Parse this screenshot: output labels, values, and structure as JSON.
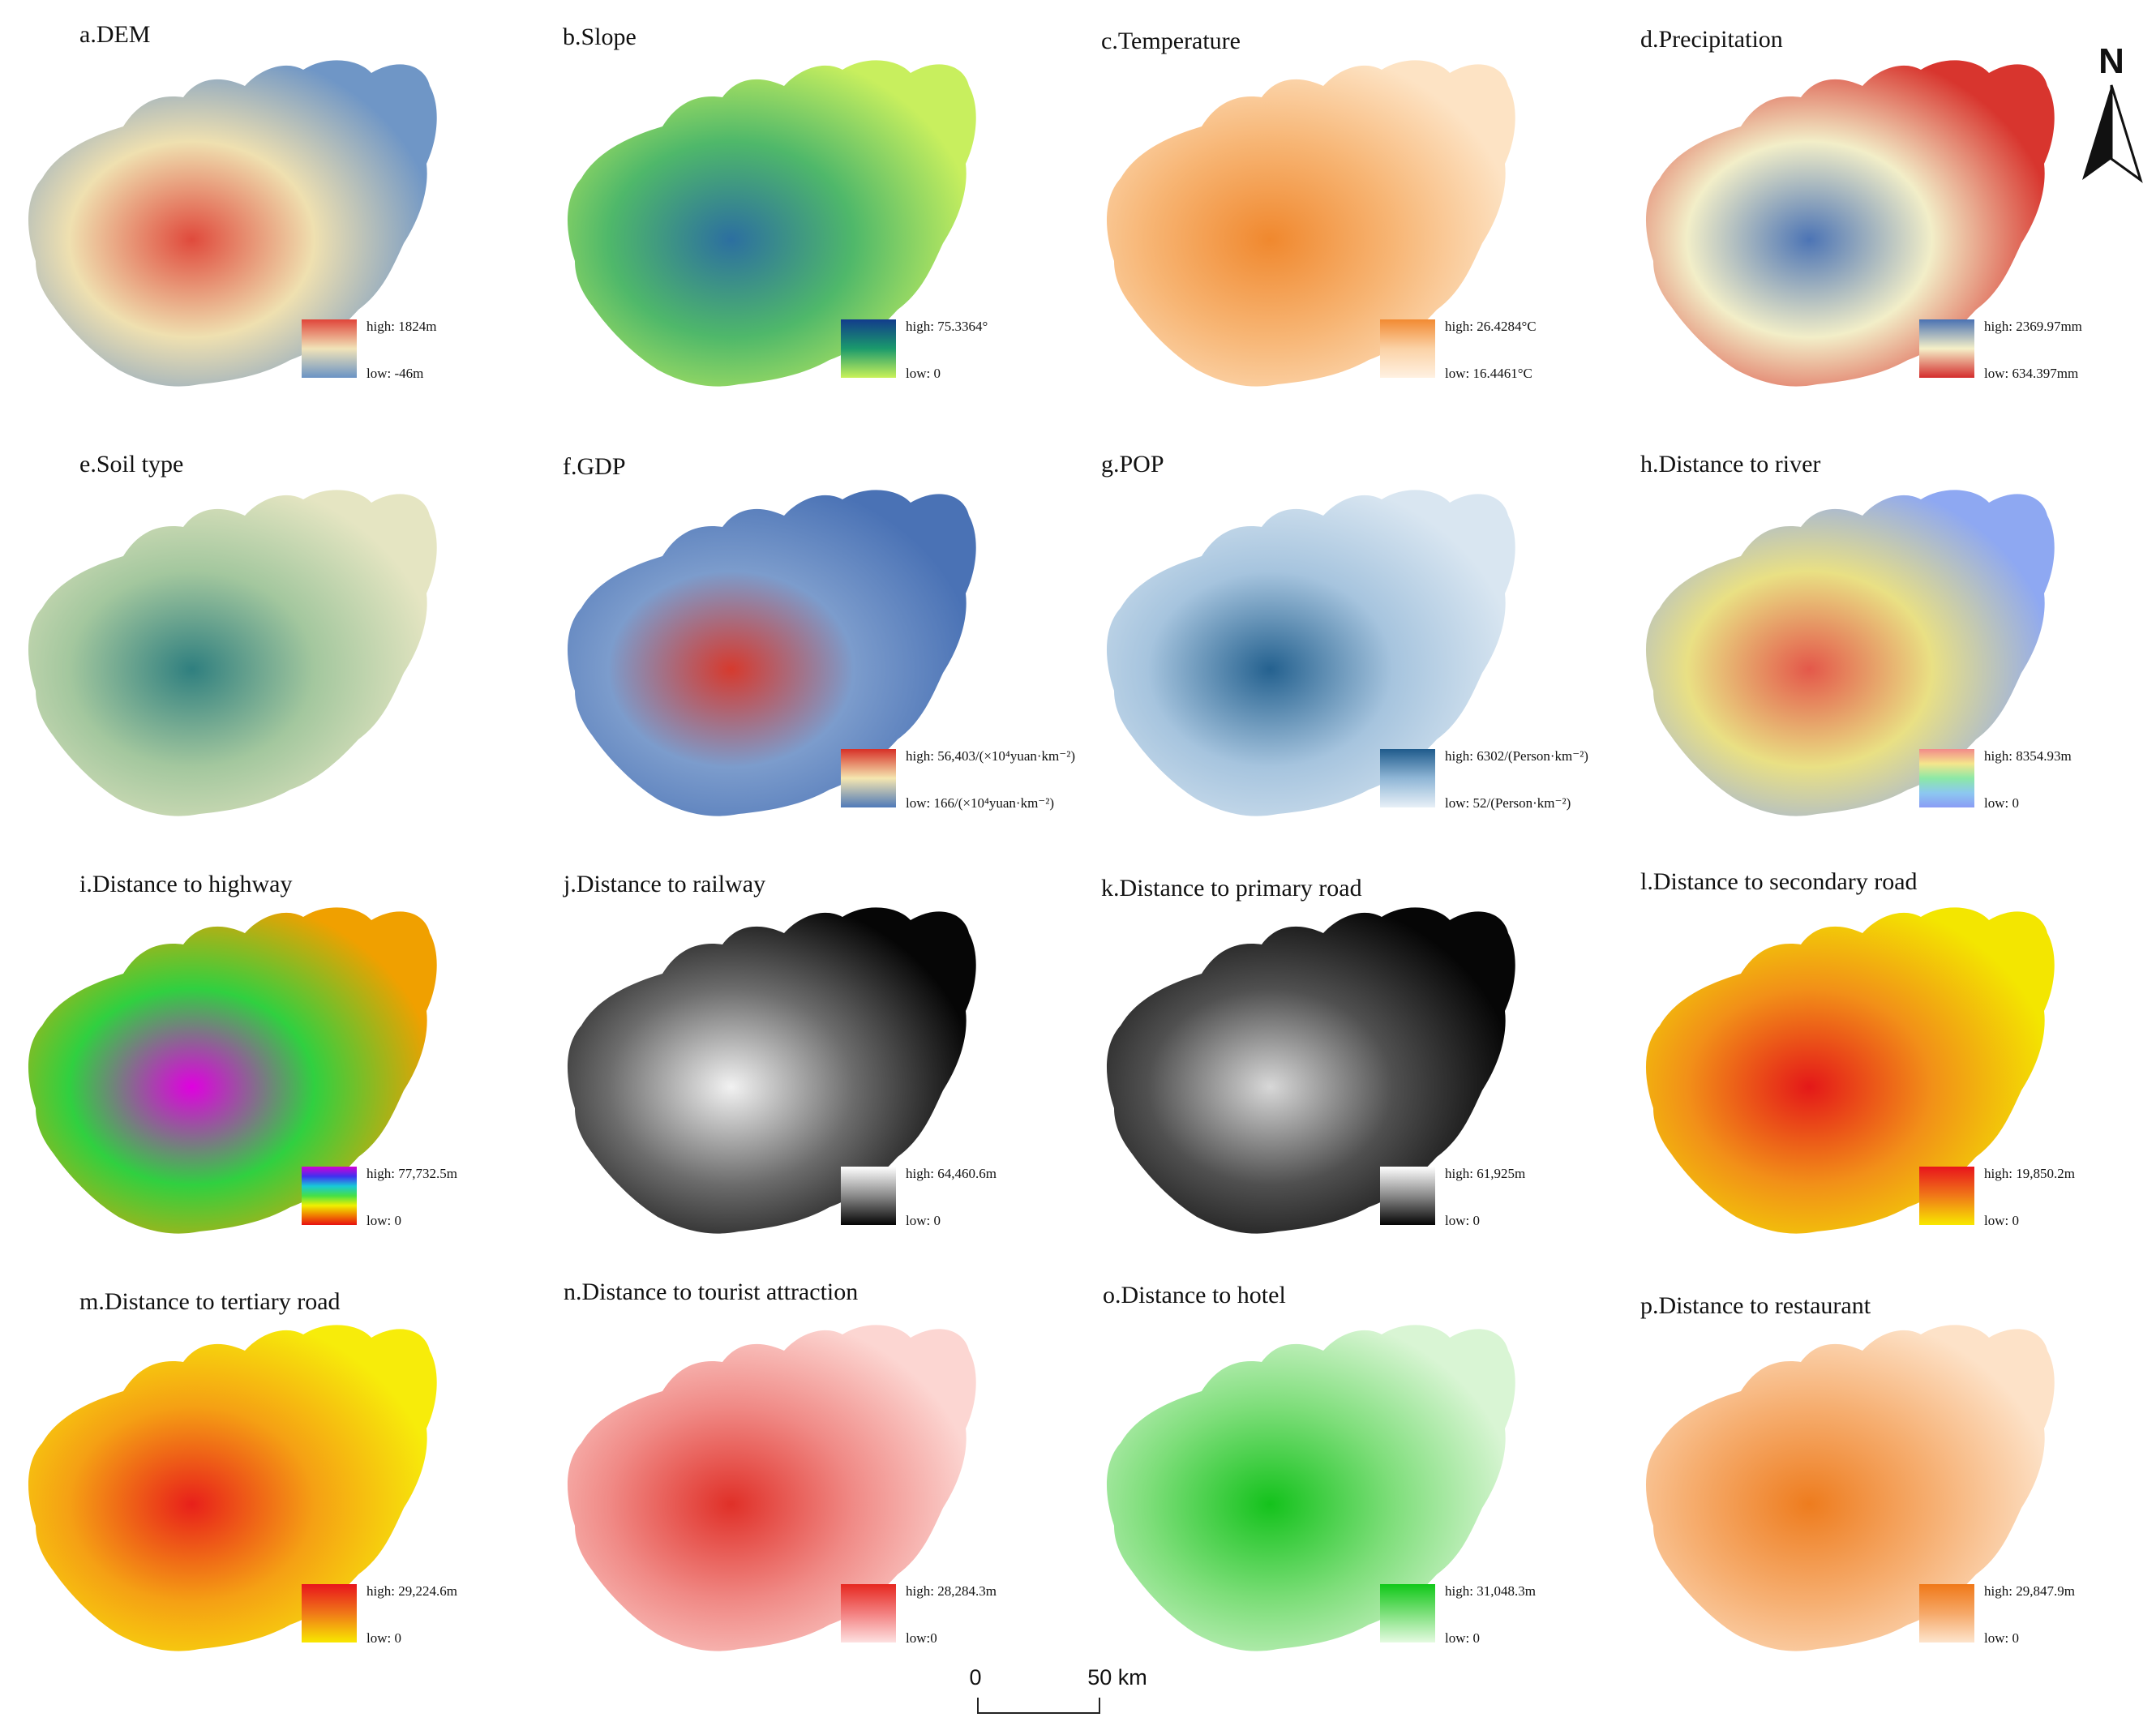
{
  "panels": [
    {
      "id": "a",
      "title": "a.DEM",
      "high": "high: 1824m",
      "low": "low: -46m",
      "legend": [
        "#e0453a",
        "#f1e3b8",
        "#6a93c4"
      ],
      "fill": [
        "#e04a3c",
        "#efe0b0",
        "#6f96c6"
      ]
    },
    {
      "id": "b",
      "title": "b.Slope",
      "high": "high: 75.3364°",
      "low": "low: 0",
      "legend": [
        "#123c8c",
        "#1a9a6c",
        "#c9f25a"
      ],
      "fill": [
        "#2c6fa0",
        "#4fb86a",
        "#c8ef5e"
      ]
    },
    {
      "id": "c",
      "title": "c.Temperature",
      "high": "high: 26.4284°C",
      "low": "low: 16.4461°C",
      "legend": [
        "#f28a32",
        "#fbd2a6",
        "#fff1e2"
      ],
      "fill": [
        "#f0882e",
        "#f7b574",
        "#fde3c4"
      ]
    },
    {
      "id": "d",
      "title": "d.Precipitation",
      "high": "high: 2369.97mm",
      "low": "low: 634.397mm",
      "legend": [
        "#4a72b3",
        "#f5f0c8",
        "#d42c2c"
      ],
      "fill": [
        "#4c74b5",
        "#f2eec8",
        "#d8352e"
      ]
    },
    {
      "id": "e",
      "title": "e.Soil type",
      "high": "",
      "low": "",
      "legend": [],
      "fill": [
        "#2f7f7f",
        "#a3c79e",
        "#e5e5c2"
      ]
    },
    {
      "id": "f",
      "title": "f.GDP",
      "high": "high: 56,403/(×10⁴yuan·km⁻²)",
      "low": "low: 166/(×10⁴yuan·km⁻²)",
      "legend": [
        "#d73027",
        "#f5e6b0",
        "#4f79b8"
      ],
      "fill": [
        "#d63a2e",
        "#7c9ccc",
        "#4a72b5"
      ]
    },
    {
      "id": "g",
      "title": "g.POP",
      "high": "high: 6302/(Person·km⁻²)",
      "low": "low: 52/(Person·km⁻²)",
      "legend": [
        "#1f5b8c",
        "#8fb6d6",
        "#e8f0f7"
      ],
      "fill": [
        "#24618f",
        "#a6c4de",
        "#d9e6f1"
      ]
    },
    {
      "id": "h",
      "title": "h.Distance to river",
      "high": "high: 8354.93m",
      "low": "low: 0",
      "legend": [
        "#f28a8a",
        "#f5e58c",
        "#8ce8a6",
        "#8cc8f0",
        "#8a9cf5"
      ],
      "fill": [
        "#e4584a",
        "#e9e084",
        "#8ea8f2"
      ]
    },
    {
      "id": "i",
      "title": "i.Distance to highway",
      "high": "high: 77,732.5m",
      "low": "low: 0",
      "legend": [
        "#d400d4",
        "#4030f0",
        "#18c8d8",
        "#46e046",
        "#f0f000",
        "#f08000",
        "#e81010"
      ],
      "fill": [
        "#e000e0",
        "#30d040",
        "#f0a000"
      ]
    },
    {
      "id": "j",
      "title": "j.Distance to railway",
      "high": "high: 64,460.6m",
      "low": "low: 0",
      "legend": [
        "#ffffff",
        "#8a8a8a",
        "#050505"
      ],
      "fill": [
        "#f2f2f2",
        "#6c6c6c",
        "#060606"
      ]
    },
    {
      "id": "k",
      "title": "k.Distance to primary road",
      "high": "high: 61,925m",
      "low": "low: 0",
      "legend": [
        "#ffffff",
        "#8a8a8a",
        "#050505"
      ],
      "fill": [
        "#d8d8d8",
        "#505050",
        "#060606"
      ]
    },
    {
      "id": "l",
      "title": "l.Distance to secondary road",
      "high": "high: 19,850.2m",
      "low": "low: 0",
      "legend": [
        "#e8141c",
        "#f07818",
        "#f8e800"
      ],
      "fill": [
        "#e41818",
        "#f29018",
        "#f3e600"
      ]
    },
    {
      "id": "m",
      "title": "m.Distance to tertiary road",
      "high": "high: 29,224.6m",
      "low": "low: 0",
      "legend": [
        "#e8141c",
        "#f07818",
        "#f8e800"
      ],
      "fill": [
        "#e8201a",
        "#f5a014",
        "#f7ec0a"
      ]
    },
    {
      "id": "n",
      "title": "n.Distance to tourist attraction",
      "high": "high: 28,284.3m",
      "low": "low:0",
      "legend": [
        "#e62820",
        "#f38080",
        "#fde0e0"
      ],
      "fill": [
        "#e03028",
        "#f08a86",
        "#fcd6d2"
      ]
    },
    {
      "id": "o",
      "title": "o.Distance to hotel",
      "high": "high: 31,048.3m",
      "low": "low: 0",
      "legend": [
        "#10c818",
        "#7ce07a",
        "#e4fae0"
      ],
      "fill": [
        "#14c21c",
        "#7ede7a",
        "#d9f5d4"
      ]
    },
    {
      "id": "p",
      "title": "p.Distance to restaurant",
      "high": "high: 29,847.9m",
      "low": "low: 0",
      "legend": [
        "#f07818",
        "#f6a868",
        "#fde4cc"
      ],
      "fill": [
        "#ee7c1e",
        "#f6ae70",
        "#fde2c8"
      ]
    }
  ],
  "north_arrow": {
    "label": "N"
  },
  "scale_bar": {
    "zero": "0",
    "end": "50 km"
  }
}
